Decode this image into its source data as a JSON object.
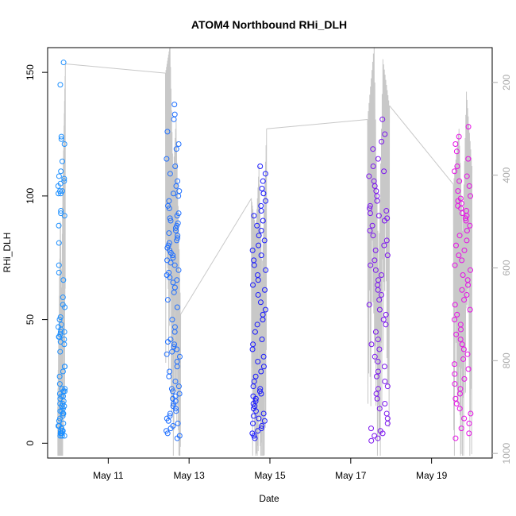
{
  "chart_data": {
    "type": "scatter",
    "title": "ATOM4 Northbound RHi_DLH",
    "xlabel": "Date",
    "ylabel": "RHi_DLH",
    "x_unit": "date",
    "xlim": [
      "2018-05-09T12:00",
      "2018-05-20T12:00"
    ],
    "ylim": [
      -6,
      160
    ],
    "x_ticks": [
      {
        "value": "2018-05-11T00:00",
        "label": "May 11"
      },
      {
        "value": "2018-05-13T00:00",
        "label": "May 13"
      },
      {
        "value": "2018-05-15T00:00",
        "label": "May 15"
      },
      {
        "value": "2018-05-17T00:00",
        "label": "May 17"
      },
      {
        "value": "2018-05-19T00:00",
        "label": "May 19"
      }
    ],
    "y_ticks": [
      0,
      50,
      100,
      150
    ],
    "secondary_axis": {
      "side": "right",
      "ticks": [
        200,
        400,
        600,
        800,
        1000
      ],
      "range": [
        1010,
        125
      ],
      "color": "#aaaaaa",
      "series_color": "#c8c8c8"
    },
    "legend": "none",
    "grid": false,
    "point_style": "open circle",
    "flights": [
      {
        "start": "2018-05-09T18:00",
        "end": "2018-05-09T22:30",
        "color": "#1e90ff",
        "rhi_points": [
          154,
          145,
          124,
          123,
          108,
          106,
          105,
          104,
          102,
          101,
          88,
          81,
          72,
          69,
          66,
          59,
          56,
          51,
          50,
          48,
          45,
          44,
          43,
          42,
          41,
          31,
          27,
          24,
          22,
          21,
          20,
          19,
          18,
          17,
          16,
          15,
          14,
          13,
          12,
          11,
          10,
          9,
          8,
          7,
          7,
          6,
          6,
          5,
          5,
          5,
          4,
          4,
          4,
          4,
          3,
          3,
          3,
          121,
          114,
          110,
          107,
          102,
          101,
          94,
          93,
          92,
          55,
          47,
          46,
          45,
          43,
          40,
          37,
          31,
          29,
          22,
          21,
          19,
          16,
          15,
          13,
          12
        ],
        "pressure_trace": [
          [
            0,
            900
          ],
          [
            0.35,
            480
          ],
          [
            0.5,
            700
          ],
          [
            0.65,
            440
          ],
          [
            1,
            160
          ]
        ]
      },
      {
        "start": "2018-05-12T10:00",
        "end": "2018-05-12T19:00",
        "color": "#1f6fff",
        "rhi_points": [
          137,
          133,
          131,
          126,
          121,
          119,
          115,
          112,
          109,
          106,
          104,
          102,
          101,
          100,
          98,
          96,
          95,
          93,
          92,
          91,
          90,
          89,
          88,
          87,
          86,
          85,
          84,
          83,
          82,
          81,
          80,
          79,
          78,
          77,
          76,
          75,
          74,
          73,
          72,
          70,
          69,
          68,
          67,
          66,
          65,
          63,
          61,
          58,
          55,
          50,
          47,
          45,
          42,
          41,
          40,
          39,
          38,
          37,
          36,
          35,
          33,
          31,
          29,
          27,
          25,
          23,
          22,
          21,
          20,
          19,
          18,
          17,
          16,
          15,
          14,
          13,
          12,
          11,
          10,
          9,
          8,
          7,
          6,
          5,
          4,
          3,
          2
        ],
        "pressure_trace": [
          [
            0,
            180
          ],
          [
            0.3,
            120
          ],
          [
            0.5,
            400
          ],
          [
            0.7,
            280
          ],
          [
            1,
            700
          ]
        ]
      },
      {
        "start": "2018-05-14T13:00",
        "end": "2018-05-14T22:00",
        "color": "#1818ff",
        "rhi_points": [
          112,
          109,
          106,
          103,
          101,
          98,
          96,
          94,
          92,
          90,
          88,
          86,
          84,
          82,
          80,
          78,
          76,
          74,
          72,
          70,
          68,
          66,
          64,
          62,
          60,
          57,
          54,
          52,
          50,
          48,
          45,
          42,
          40,
          38,
          35,
          33,
          31,
          29,
          27,
          25,
          23,
          22,
          21,
          20,
          19,
          18,
          17,
          16,
          15,
          14,
          13,
          12,
          11,
          10,
          9,
          8,
          7,
          6,
          5,
          4,
          3,
          2
        ],
        "pressure_trace": [
          [
            0,
            450
          ],
          [
            0.3,
            520
          ],
          [
            0.5,
            380
          ],
          [
            0.7,
            620
          ],
          [
            1,
            300
          ]
        ]
      },
      {
        "start": "2018-05-17T10:00",
        "end": "2018-05-17T23:00",
        "color": "#7b14ee",
        "rhi_points": [
          131,
          125,
          122,
          119,
          115,
          112,
          110,
          108,
          106,
          104,
          102,
          100,
          98,
          96,
          95,
          94,
          93,
          92,
          91,
          90,
          88,
          86,
          84,
          82,
          80,
          78,
          76,
          74,
          72,
          70,
          68,
          66,
          64,
          62,
          60,
          58,
          56,
          54,
          52,
          50,
          48,
          45,
          42,
          40,
          38,
          35,
          33,
          31,
          29,
          27,
          25,
          23,
          22,
          20,
          18,
          16,
          14,
          12,
          10,
          8,
          6,
          5,
          4,
          3,
          2,
          1
        ],
        "pressure_trace": [
          [
            0,
            280
          ],
          [
            0.3,
            120
          ],
          [
            0.5,
            600
          ],
          [
            0.7,
            150
          ],
          [
            1,
            250
          ]
        ]
      },
      {
        "start": "2018-05-19T13:00",
        "end": "2018-05-20T00:00",
        "color": "#e60ee6",
        "rhi_points": [
          128,
          124,
          121,
          118,
          115,
          112,
          110,
          108,
          106,
          104,
          102,
          100,
          99,
          98,
          97,
          96,
          95,
          94,
          93,
          92,
          91,
          90,
          88,
          86,
          84,
          82,
          80,
          78,
          76,
          74,
          72,
          70,
          68,
          66,
          64,
          62,
          60,
          58,
          56,
          54,
          52,
          50,
          48,
          46,
          44,
          42,
          40,
          38,
          36,
          34,
          32,
          30,
          28,
          26,
          24,
          22,
          20,
          18,
          16,
          14,
          12,
          10,
          8,
          6,
          4,
          2
        ],
        "pressure_trace": [
          [
            0,
            420
          ],
          [
            0.3,
            300
          ],
          [
            0.5,
            520
          ],
          [
            0.7,
            220
          ],
          [
            1,
            380
          ]
        ]
      }
    ]
  }
}
